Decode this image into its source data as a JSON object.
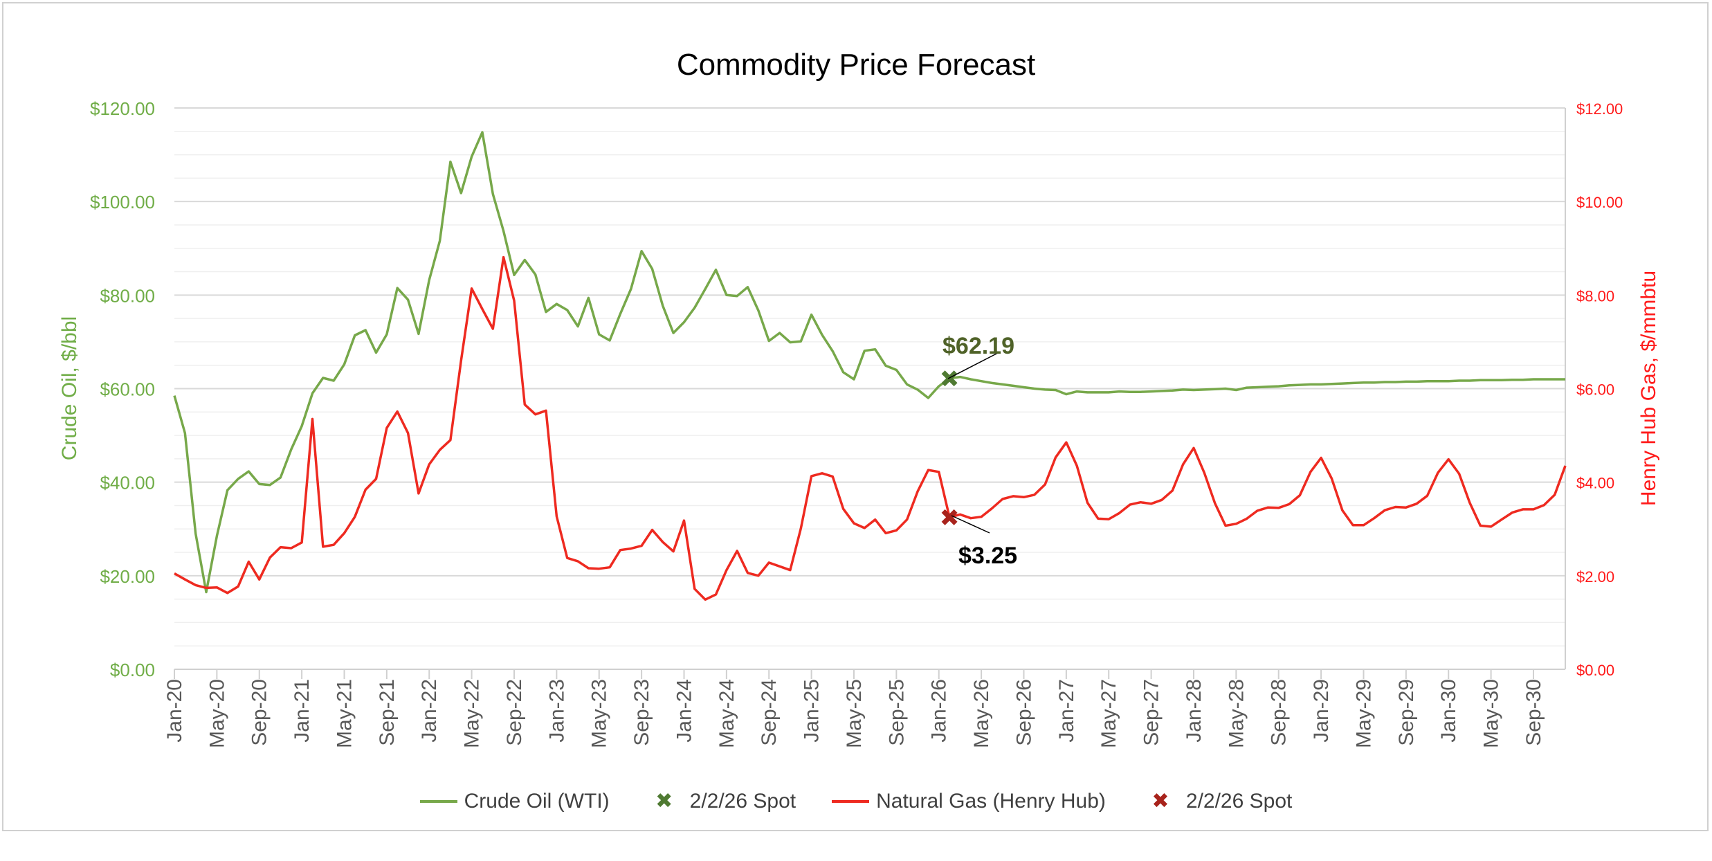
{
  "chart_data": {
    "type": "line",
    "title": "Commodity Price Forecast",
    "y_left_label": "Crude Oil, $/bbl",
    "y_right_label": "Henry Hub Gas, $/mmbtu",
    "y_left_lim": [
      0,
      120
    ],
    "y_right_lim": [
      0,
      12
    ],
    "y_left_ticks": [
      "$0.00",
      "$20.00",
      "$40.00",
      "$60.00",
      "$80.00",
      "$100.00",
      "$120.00"
    ],
    "y_right_ticks": [
      "$0.00",
      "$2.00",
      "$4.00",
      "$6.00",
      "$8.00",
      "$10.00",
      "$12.00"
    ],
    "x_start": "Jan-20",
    "x_end": "Dec-30",
    "x_tick_labels": [
      "Jan-20",
      "May-20",
      "Sep-20",
      "Jan-21",
      "May-21",
      "Sep-21",
      "Jan-22",
      "May-22",
      "Sep-22",
      "Jan-23",
      "May-23",
      "Sep-23",
      "Jan-24",
      "May-24",
      "Sep-24",
      "Jan-25",
      "May-25",
      "Sep-25",
      "Jan-26",
      "May-26",
      "Sep-26",
      "Jan-27",
      "May-27",
      "Sep-27",
      "Jan-28",
      "May-28",
      "Sep-28",
      "Jan-29",
      "May-29",
      "Sep-29",
      "Jan-30",
      "May-30",
      "Sep-30"
    ],
    "grid": true,
    "legend_position": "bottom",
    "colors": {
      "crude": "#77a84a",
      "gas": "#ee2a20",
      "crude_spot": "#4f7a32",
      "gas_spot": "#a8231c",
      "crude_axis": "#70ad47",
      "gas_axis": "#ff1a1a"
    },
    "series": [
      {
        "name": "Crude Oil (WTI)",
        "axis": "left",
        "values": [
          58.5,
          50.5,
          29,
          16.5,
          28.5,
          38.3,
          40.7,
          42.3,
          39.6,
          39.4,
          41,
          47,
          52,
          59,
          62.3,
          61.7,
          65.2,
          71.4,
          72.5,
          67.7,
          71.6,
          81.5,
          79,
          71.7,
          83.2,
          91.6,
          108.5,
          101.8,
          109.6,
          114.8,
          101.6,
          93.7,
          84.3,
          87.5,
          84.4,
          76.4,
          78.1,
          76.8,
          73.3,
          79.4,
          71.6,
          70.3,
          76,
          81.3,
          89.4,
          85.6,
          77.7,
          71.9,
          74.2,
          77.3,
          81.3,
          85.4,
          80,
          79.8,
          81.7,
          76.7,
          70.2,
          71.9,
          69.9,
          70.1,
          75.8,
          71.5,
          68,
          63.5,
          62,
          68.1,
          68.4,
          64.9,
          64,
          60.9,
          59.8,
          58,
          60.5,
          62.19,
          62.5,
          62,
          61.6,
          61.2,
          60.9,
          60.6,
          60.3,
          60,
          59.8,
          59.7,
          58.8,
          59.4,
          59.2,
          59.2,
          59.2,
          59.4,
          59.3,
          59.3,
          59.4,
          59.5,
          59.6,
          59.8,
          59.7,
          59.8,
          59.9,
          60,
          59.7,
          60.2,
          60.3,
          60.4,
          60.5,
          60.7,
          60.8,
          60.9,
          60.9,
          61,
          61.1,
          61.2,
          61.3,
          61.3,
          61.4,
          61.4,
          61.5,
          61.5,
          61.6,
          61.6,
          61.6,
          61.7,
          61.7,
          61.8,
          61.8,
          61.8,
          61.9,
          61.9,
          62,
          62,
          62,
          62
        ]
      },
      {
        "name": "Natural Gas (Henry Hub)",
        "axis": "right",
        "values": [
          2.05,
          1.92,
          1.8,
          1.74,
          1.75,
          1.63,
          1.77,
          2.3,
          1.92,
          2.39,
          2.61,
          2.59,
          2.71,
          5.35,
          2.62,
          2.66,
          2.91,
          3.26,
          3.84,
          4.07,
          5.16,
          5.51,
          5.05,
          3.76,
          4.38,
          4.69,
          4.9,
          6.6,
          8.14,
          7.7,
          7.28,
          8.81,
          7.88,
          5.66,
          5.45,
          5.53,
          3.27,
          2.38,
          2.31,
          2.16,
          2.15,
          2.18,
          2.55,
          2.58,
          2.64,
          2.98,
          2.72,
          2.52,
          3.18,
          1.72,
          1.49,
          1.6,
          2.12,
          2.53,
          2.06,
          2.0,
          2.28,
          2.2,
          2.12,
          3.01,
          4.13,
          4.19,
          4.12,
          3.43,
          3.12,
          3.02,
          3.2,
          2.91,
          2.97,
          3.2,
          3.8,
          4.26,
          4.22,
          3.25,
          3.31,
          3.23,
          3.26,
          3.44,
          3.64,
          3.7,
          3.68,
          3.73,
          3.95,
          4.53,
          4.85,
          4.35,
          3.56,
          3.22,
          3.21,
          3.34,
          3.52,
          3.57,
          3.54,
          3.62,
          3.82,
          4.38,
          4.73,
          4.2,
          3.55,
          3.07,
          3.11,
          3.22,
          3.39,
          3.46,
          3.45,
          3.53,
          3.72,
          4.22,
          4.52,
          4.08,
          3.4,
          3.08,
          3.08,
          3.23,
          3.4,
          3.47,
          3.46,
          3.54,
          3.71,
          4.2,
          4.49,
          4.18,
          3.56,
          3.07,
          3.05,
          3.2,
          3.35,
          3.42,
          3.42,
          3.51,
          3.73,
          4.35
        ]
      }
    ],
    "spot_points": [
      {
        "name": "2/2/26 Spot",
        "series": "Crude Oil (WTI)",
        "date": "Feb-26",
        "value": 62.19,
        "label": "$62.19"
      },
      {
        "name": "2/2/26 Spot",
        "series": "Natural Gas (Henry Hub)",
        "date": "Feb-26",
        "value": 3.25,
        "label": "$3.25"
      }
    ],
    "legend": [
      "Crude Oil (WTI)",
      "2/2/26 Spot",
      "Natural Gas (Henry Hub)",
      "2/2/26 Spot"
    ]
  }
}
